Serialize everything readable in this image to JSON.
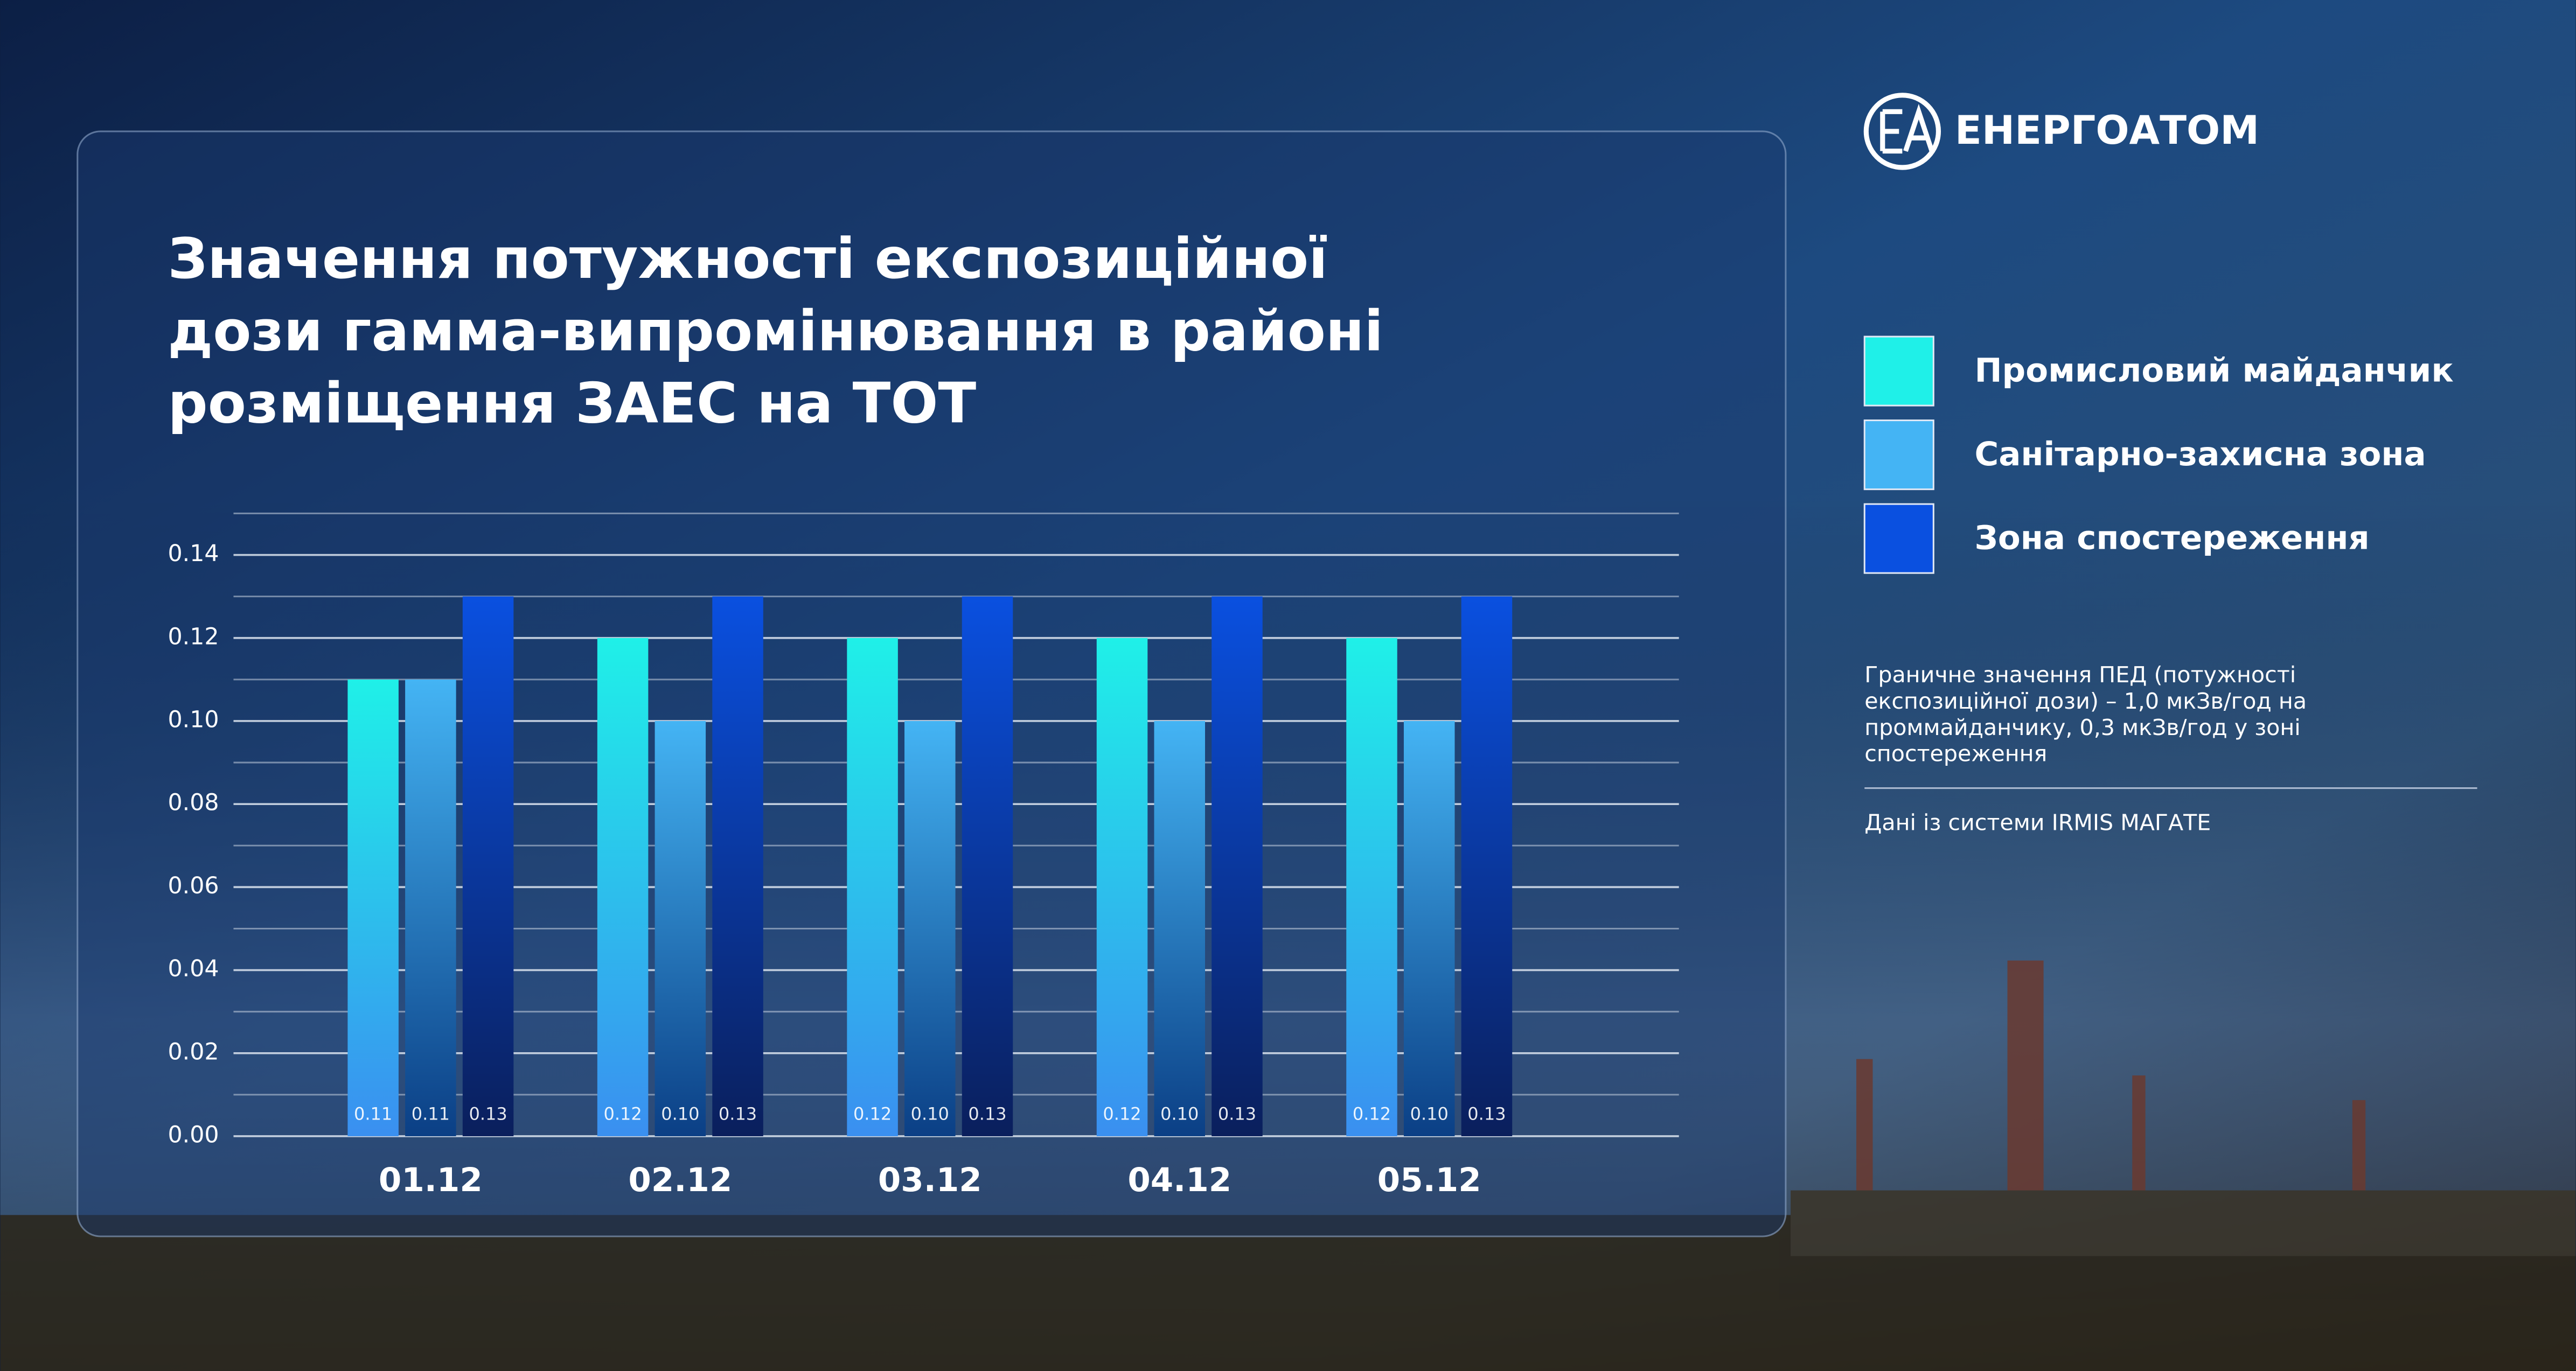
{
  "logo": "ЕНЕРГОАТОМ",
  "chart_data": {
    "type": "bar",
    "title": [
      "Значення потужності експозиційної",
      "дози гамма-випромінювання в районі",
      "розміщення ЗАЕС на ТОТ"
    ],
    "categories": [
      "01.12",
      "02.12",
      "03.12",
      "04.12",
      "05.12"
    ],
    "series": [
      {
        "name": "Промисловий майданчик",
        "color": "#1ff0e8",
        "values": [
          0.11,
          0.12,
          0.12,
          0.12,
          0.12
        ],
        "value_labels": [
          "0.11",
          "0.12",
          "0.12",
          "0.12",
          "0.12"
        ]
      },
      {
        "name": "Санітарно-захисна зона",
        "color": "#44b4f4",
        "values": [
          0.11,
          0.1,
          0.1,
          0.1,
          0.1
        ],
        "value_labels": [
          "0.11",
          "0.10",
          "0.10",
          "0.10",
          "0.10"
        ]
      },
      {
        "name": "Зона спостереження",
        "color": "#0a50e0",
        "values": [
          0.13,
          0.13,
          0.13,
          0.13,
          0.13
        ],
        "value_labels": [
          "0.13",
          "0.13",
          "0.13",
          "0.13",
          "0.13"
        ]
      }
    ],
    "ylim": [
      0,
      0.15
    ],
    "yticks": [
      {
        "value": 0,
        "label": "0.00"
      },
      {
        "value": 0.02,
        "label": "0.02"
      },
      {
        "value": 0.04,
        "label": "0.04"
      },
      {
        "value": 0.06,
        "label": "0.06"
      },
      {
        "value": 0.08,
        "label": "0.08"
      },
      {
        "value": 0.1,
        "label": "0.10"
      },
      {
        "value": 0.12,
        "label": "0.12"
      },
      {
        "value": 0.14,
        "label": "0.14"
      }
    ],
    "minor_yticks": [
      0.01,
      0.03,
      0.05,
      0.07,
      0.09,
      0.11,
      0.13,
      0.15
    ],
    "grid": true,
    "note": [
      "Граничне значення ПЕД (потужності",
      "експозиційної дози) – 1,0 мкЗв/год на",
      "проммайданчику, 0,3 мкЗв/год у зоні",
      "спостереження"
    ],
    "source": "Дані із системи IRMIS МАГАТЕ"
  }
}
